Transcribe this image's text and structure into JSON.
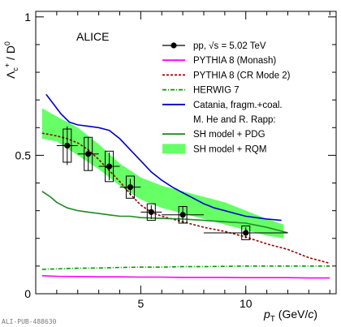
{
  "footer_label": "ALI-PUB-488630",
  "chart_data": {
    "type": "line",
    "experiment_label": "ALICE",
    "ylabel": "Λc+ / D0",
    "xlabel": "pT (GeV/c)",
    "xlim": [
      0,
      14.3
    ],
    "ylim": [
      0,
      1.02
    ],
    "x_ticks": [
      5,
      10
    ],
    "y_ticks": [
      0,
      0.5,
      1
    ],
    "legend_position": "top-right",
    "legend": [
      {
        "key": "data",
        "label": "pp, √s = 5.02 TeV"
      },
      {
        "key": "monash",
        "label": "PYTHIA 8 (Monash)"
      },
      {
        "key": "cr2",
        "label": "PYTHIA 8 (CR Mode 2)"
      },
      {
        "key": "herwig",
        "label": "HERWIG 7"
      },
      {
        "key": "catania",
        "label": "Catania, fragm.+coal."
      },
      {
        "key": "rapp_header",
        "label": "M. He and R. Rapp:"
      },
      {
        "key": "shpdg",
        "label": "SH model + PDG"
      },
      {
        "key": "shrqm",
        "label": "SH model + RQM"
      }
    ],
    "data_points": [
      {
        "x": 1.5,
        "y": 0.535,
        "xerr": 0.5,
        "stat": 0.07,
        "syst": 0.06
      },
      {
        "x": 2.5,
        "y": 0.505,
        "xerr": 0.5,
        "stat": 0.06,
        "syst": 0.06
      },
      {
        "x": 3.5,
        "y": 0.46,
        "xerr": 0.5,
        "stat": 0.05,
        "syst": 0.055
      },
      {
        "x": 4.5,
        "y": 0.385,
        "xerr": 0.5,
        "stat": 0.03,
        "syst": 0.04
      },
      {
        "x": 5.5,
        "y": 0.295,
        "xerr": 0.5,
        "stat": 0.025,
        "syst": 0.03
      },
      {
        "x": 7.0,
        "y": 0.285,
        "xerr": 1.0,
        "stat": 0.03,
        "syst": 0.03
      },
      {
        "x": 10.0,
        "y": 0.22,
        "xerr": 2.0,
        "stat": 0.02,
        "syst": 0.025
      }
    ],
    "series": [
      {
        "key": "monash",
        "color": "#ff00ff",
        "style": "solid",
        "x": [
          0.3,
          1,
          2,
          3,
          4,
          5,
          6,
          7,
          8,
          9,
          10,
          11,
          12,
          13,
          14
        ],
        "y": [
          0.065,
          0.063,
          0.062,
          0.061,
          0.061,
          0.06,
          0.06,
          0.059,
          0.059,
          0.059,
          0.058,
          0.058,
          0.058,
          0.057,
          0.057
        ]
      },
      {
        "key": "cr2",
        "color": "#990000",
        "style": "dashed",
        "x": [
          0.3,
          1,
          1.5,
          2,
          2.5,
          3,
          3.5,
          4,
          4.5,
          5,
          5.5,
          6,
          7,
          8,
          9,
          10,
          11,
          12,
          13,
          14
        ],
        "y": [
          0.58,
          0.57,
          0.56,
          0.545,
          0.52,
          0.485,
          0.445,
          0.405,
          0.36,
          0.32,
          0.295,
          0.28,
          0.26,
          0.24,
          0.225,
          0.205,
          0.18,
          0.16,
          0.13,
          0.11
        ]
      },
      {
        "key": "herwig",
        "color": "#009900",
        "style": "dashdot",
        "x": [
          0.3,
          1,
          2,
          3,
          4,
          5,
          6,
          7,
          8,
          9,
          10,
          11,
          12,
          13,
          14
        ],
        "y": [
          0.088,
          0.09,
          0.092,
          0.093,
          0.095,
          0.096,
          0.096,
          0.098,
          0.098,
          0.099,
          0.1,
          0.1,
          0.1,
          0.1,
          0.1
        ]
      },
      {
        "key": "catania",
        "color": "#0000cc",
        "style": "solid",
        "x": [
          0.5,
          0.8,
          1.2,
          1.6,
          2,
          2.5,
          3,
          3.5,
          4,
          4.5,
          5,
          5.5,
          6,
          6.5,
          7,
          7.5,
          8,
          8.5,
          9,
          9.5,
          10,
          10.5,
          11,
          11.7
        ],
        "y": [
          0.72,
          0.69,
          0.65,
          0.62,
          0.61,
          0.605,
          0.6,
          0.59,
          0.56,
          0.52,
          0.48,
          0.44,
          0.41,
          0.385,
          0.365,
          0.345,
          0.325,
          0.31,
          0.3,
          0.29,
          0.28,
          0.275,
          0.27,
          0.265
        ]
      },
      {
        "key": "shpdg",
        "color": "#228822",
        "style": "solid",
        "x": [
          0.3,
          0.7,
          1,
          1.5,
          2,
          2.5,
          3,
          3.5,
          4,
          4.5,
          5,
          6,
          7,
          8,
          9,
          10,
          11,
          12
        ],
        "y": [
          0.37,
          0.35,
          0.33,
          0.31,
          0.3,
          0.295,
          0.29,
          0.285,
          0.28,
          0.28,
          0.275,
          0.272,
          0.27,
          0.265,
          0.26,
          0.255,
          0.24,
          0.22
        ]
      }
    ],
    "band": {
      "key": "shrqm",
      "color": "#66ff66",
      "x": [
        0.3,
        1,
        2,
        3,
        4,
        5,
        6,
        7,
        8,
        9,
        10,
        11,
        11.8
      ],
      "upper": [
        0.67,
        0.64,
        0.6,
        0.54,
        0.47,
        0.42,
        0.39,
        0.37,
        0.35,
        0.33,
        0.3,
        0.27,
        0.25
      ],
      "lower": [
        0.56,
        0.55,
        0.5,
        0.45,
        0.39,
        0.34,
        0.31,
        0.29,
        0.27,
        0.25,
        0.23,
        0.21,
        0.2
      ]
    }
  }
}
